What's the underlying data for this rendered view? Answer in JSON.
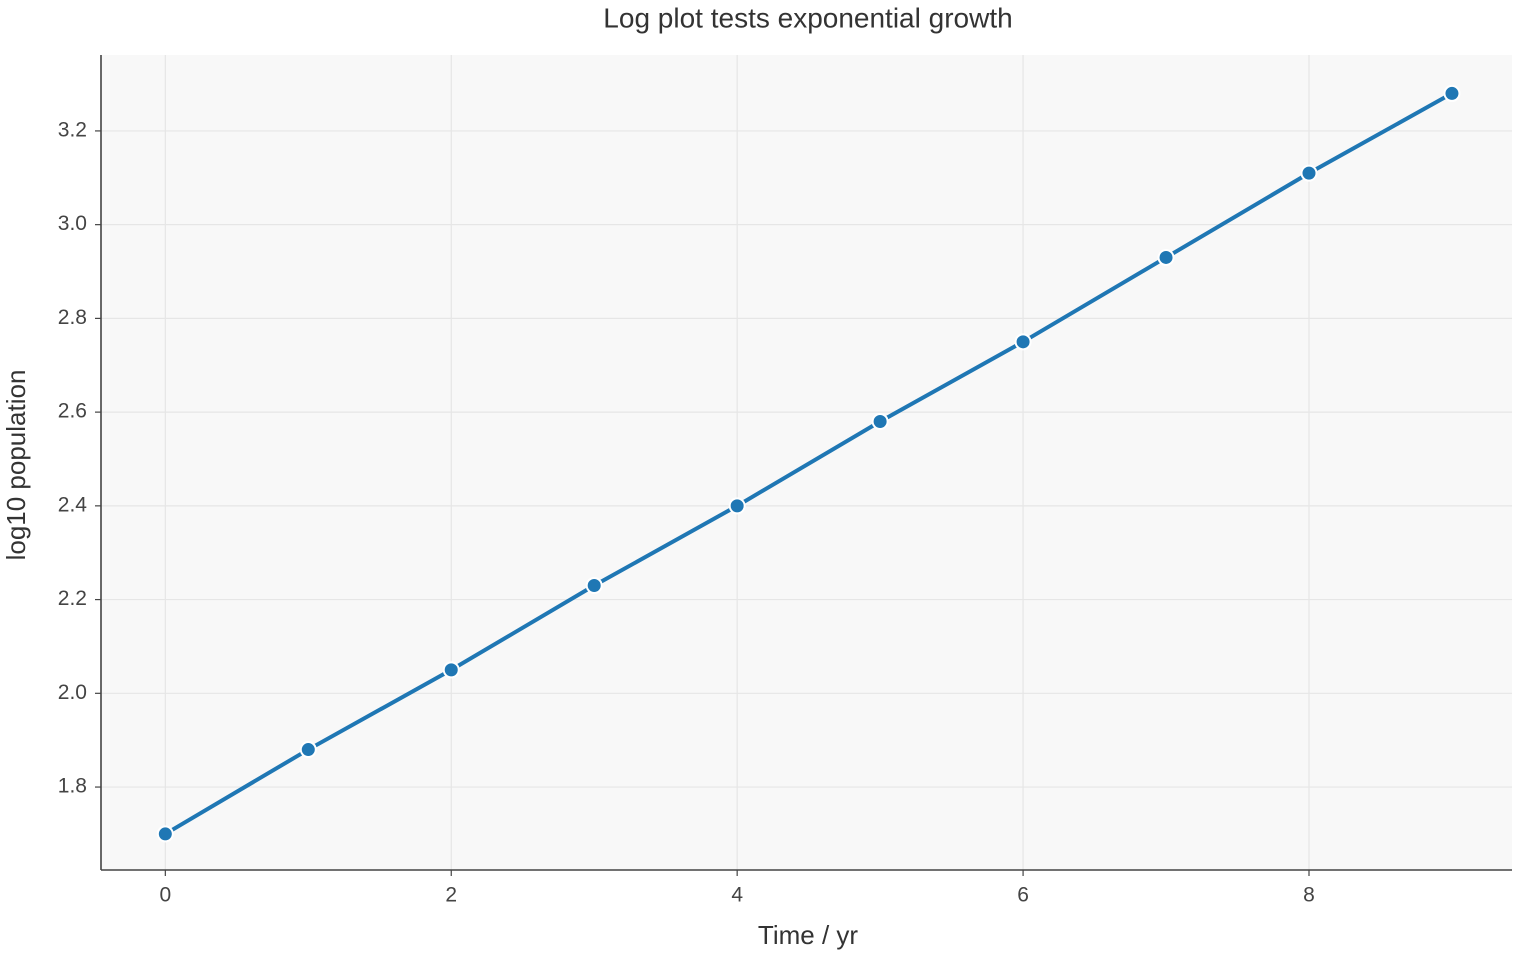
{
  "chart_data": {
    "type": "line",
    "title": "Log plot tests exponential growth",
    "x_label": "Time / yr",
    "y_label": "log10 population",
    "x": [
      0,
      1,
      2,
      3,
      4,
      5,
      6,
      7,
      8,
      9
    ],
    "series": [
      {
        "name": "log10 population",
        "color": "#1f77b4",
        "values": [
          1.7,
          1.88,
          2.05,
          2.23,
          2.4,
          2.58,
          2.75,
          2.93,
          3.11,
          3.28
        ]
      }
    ],
    "xlim": [
      -0.45,
      9.42
    ],
    "ylim": [
      1.623,
      3.362
    ],
    "xticks": [
      0,
      2,
      4,
      6,
      8
    ],
    "yticks": [
      1.8,
      {
        "value": 2.0,
        "label": "2.0"
      },
      2.2,
      2.4,
      2.6,
      2.8,
      {
        "value": 3.0,
        "label": "3.0"
      },
      3.2
    ],
    "grid": true,
    "markers": true
  }
}
